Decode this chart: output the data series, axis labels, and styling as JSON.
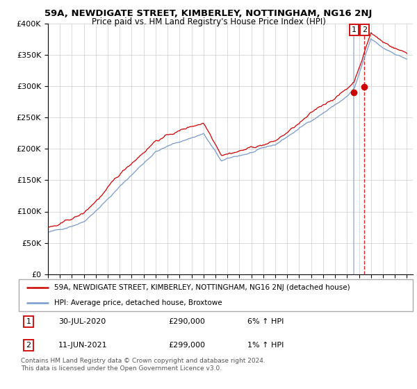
{
  "title": "59A, NEWDIGATE STREET, KIMBERLEY, NOTTINGHAM, NG16 2NJ",
  "subtitle": "Price paid vs. HM Land Registry's House Price Index (HPI)",
  "ylabel_ticks": [
    "£0",
    "£50K",
    "£100K",
    "£150K",
    "£200K",
    "£250K",
    "£300K",
    "£350K",
    "£400K"
  ],
  "ytick_values": [
    0,
    50000,
    100000,
    150000,
    200000,
    250000,
    300000,
    350000,
    400000
  ],
  "ylim": [
    0,
    400000
  ],
  "xlim_start": 1995.0,
  "xlim_end": 2025.5,
  "hpi_color": "#7799cc",
  "price_color": "#cc0000",
  "sale1_vline_color": "#aabbdd",
  "sale2_vline_color": "#cc0000",
  "sale1_vline_style": "-",
  "sale2_vline_style": "--",
  "legend_label_1": "59A, NEWDIGATE STREET, KIMBERLEY, NOTTINGHAM, NG16 2NJ (detached house)",
  "legend_label_2": "HPI: Average price, detached house, Broxtowe",
  "sale_1_label": "1",
  "sale_1_date": "30-JUL-2020",
  "sale_1_price": "£290,000",
  "sale_1_hpi": "6% ↑ HPI",
  "sale_1_x": 2020.583,
  "sale_1_y": 290000,
  "sale_2_label": "2",
  "sale_2_date": "11-JUN-2021",
  "sale_2_price": "£299,000",
  "sale_2_hpi": "1% ↑ HPI",
  "sale_2_x": 2021.458,
  "sale_2_y": 299000,
  "copyright": "Contains HM Land Registry data © Crown copyright and database right 2024.\nThis data is licensed under the Open Government Licence v3.0.",
  "background_color": "#ffffff",
  "grid_color": "#cccccc",
  "title_fontsize": 9.5,
  "subtitle_fontsize": 8.5,
  "tick_fontsize": 8,
  "legend_fontsize": 7.5,
  "sale_fontsize": 8,
  "copyright_fontsize": 6.5
}
